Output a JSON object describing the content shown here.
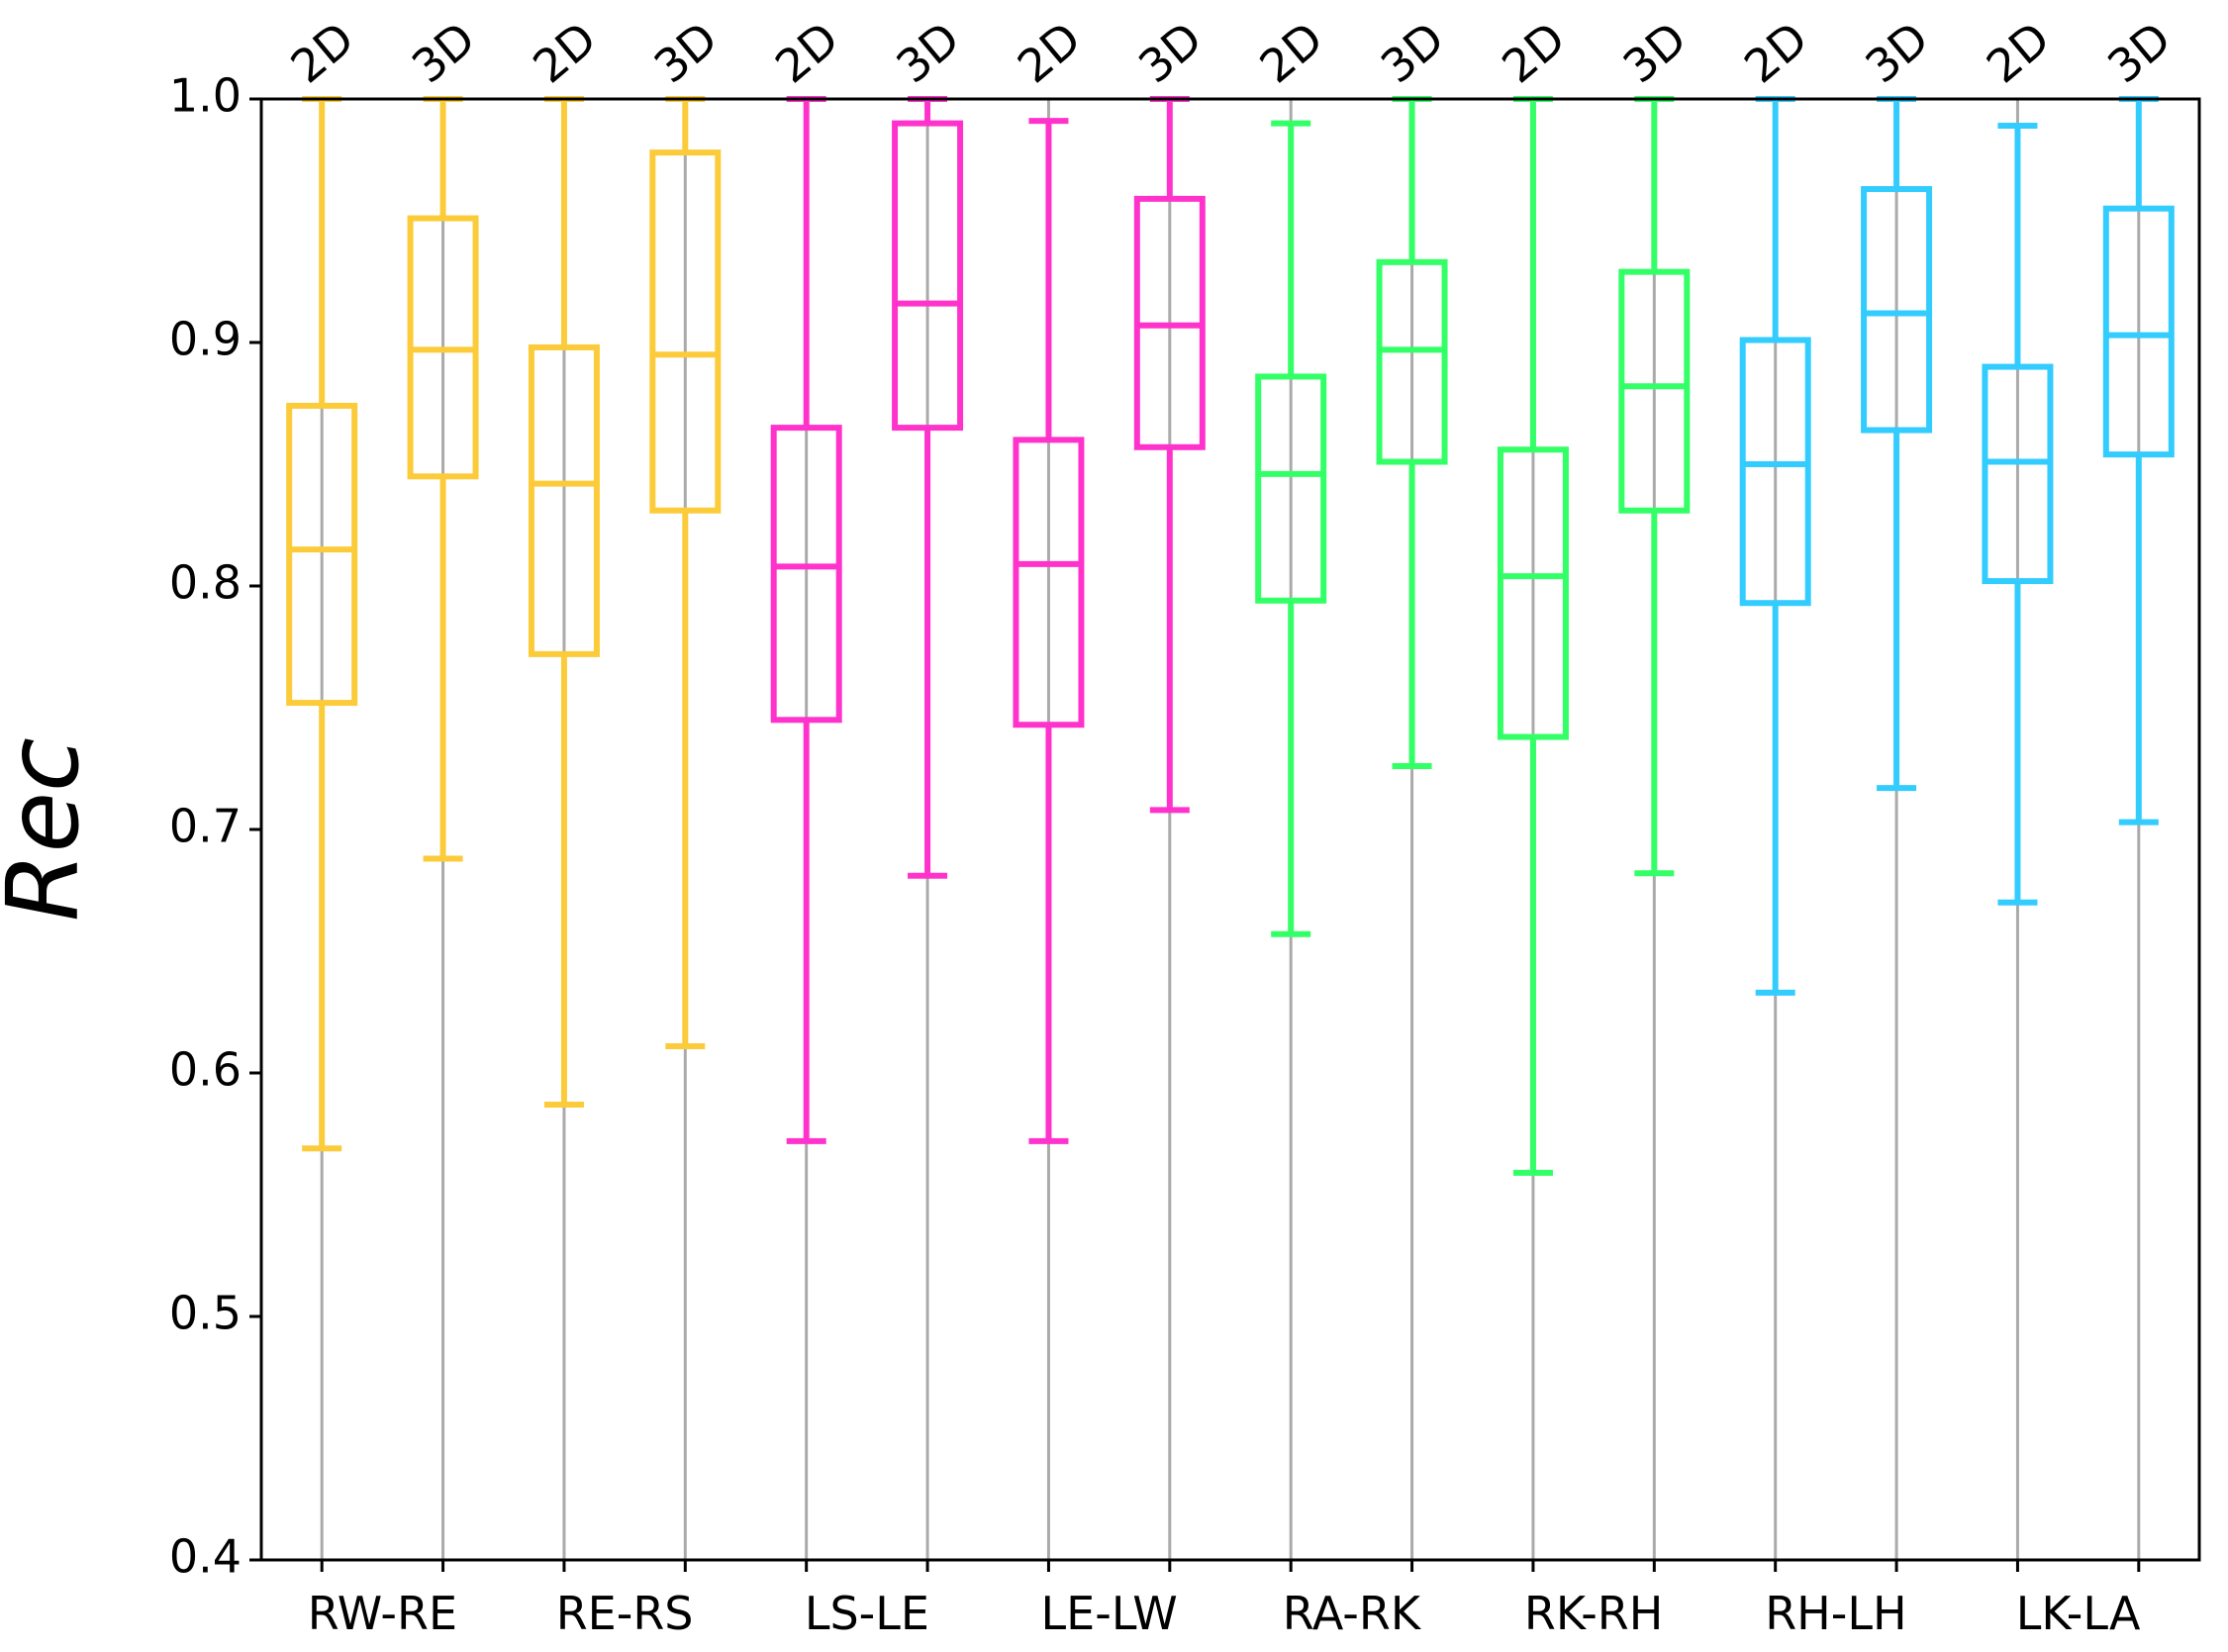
{
  "chart_data": {
    "type": "box",
    "ylabel": "Rec",
    "categories": [
      "RW-RE",
      "RE-RS",
      "LS-LE",
      "LE-LW",
      "RA-RK",
      "RK-RH",
      "RH-LH",
      "LK-LA"
    ],
    "colors": [
      "#fccb3a",
      "#fccb3a",
      "#ff33cc",
      "#ff33cc",
      "#33ff66",
      "#33ff66",
      "#33ccff",
      "#33ccff"
    ],
    "series": [
      {
        "name": "2D",
        "whislo": [
          0.569,
          0.587,
          0.572,
          0.572,
          0.657,
          0.559,
          0.633,
          0.67
        ],
        "q1": [
          0.752,
          0.772,
          0.745,
          0.743,
          0.794,
          0.738,
          0.793,
          0.802
        ],
        "med": [
          0.815,
          0.842,
          0.808,
          0.809,
          0.846,
          0.804,
          0.85,
          0.851
        ],
        "q3": [
          0.874,
          0.898,
          0.865,
          0.86,
          0.886,
          0.856,
          0.901,
          0.89
        ],
        "whishi": [
          1.0,
          1.0,
          1.0,
          0.991,
          0.99,
          1.0,
          1.0,
          0.989
        ]
      },
      {
        "name": "3D",
        "whislo": [
          0.688,
          0.611,
          0.681,
          0.708,
          0.726,
          0.682,
          0.717,
          0.703
        ],
        "q1": [
          0.845,
          0.831,
          0.865,
          0.857,
          0.851,
          0.831,
          0.864,
          0.854
        ],
        "med": [
          0.897,
          0.895,
          0.916,
          0.907,
          0.897,
          0.882,
          0.912,
          0.903
        ],
        "q3": [
          0.951,
          0.978,
          0.99,
          0.959,
          0.933,
          0.929,
          0.963,
          0.955
        ],
        "whishi": [
          1.0,
          1.0,
          1.0,
          1.0,
          1.0,
          1.0,
          1.0,
          1.0
        ]
      }
    ],
    "ylim": [
      0.4,
      1.0
    ],
    "yticks": [
      0.4,
      0.5,
      0.6,
      0.7,
      0.8,
      0.9,
      {
        "value": 1.0,
        "label": "1.0"
      }
    ],
    "grid_color": "#aaaaaa"
  }
}
